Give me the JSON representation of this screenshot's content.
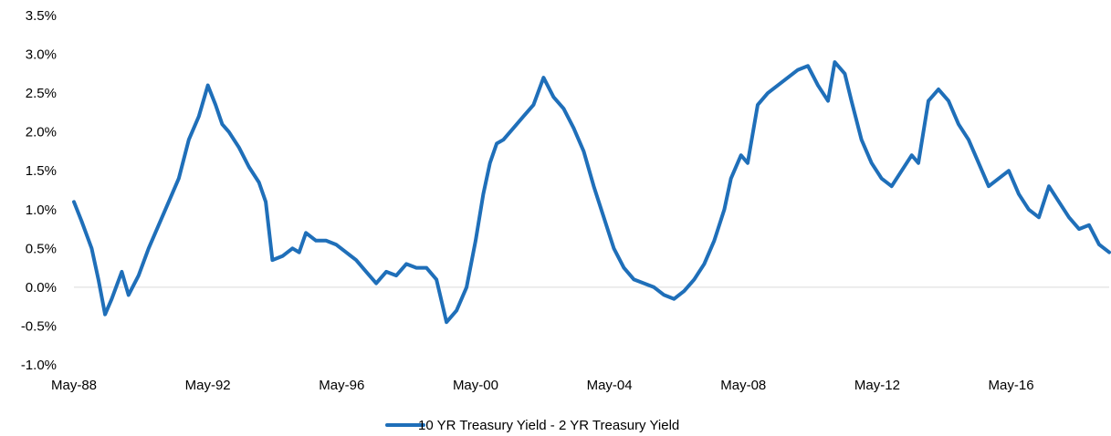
{
  "chart_data": {
    "type": "line",
    "title": "",
    "xlabel": "",
    "ylabel": "",
    "x_tick_labels": [
      "May-88",
      "May-92",
      "May-96",
      "May-00",
      "May-04",
      "May-08",
      "May-12",
      "May-16"
    ],
    "x_tick_years": [
      1988.37,
      1992.37,
      1996.37,
      2000.37,
      2004.37,
      2008.37,
      2012.37,
      2016.37
    ],
    "y_tick_labels": [
      "3.5%",
      "3.0%",
      "2.5%",
      "2.0%",
      "1.5%",
      "1.0%",
      "0.5%",
      "0.0%",
      "-0.5%",
      "-1.0%"
    ],
    "y_tick_values": [
      3.5,
      3.0,
      2.5,
      2.0,
      1.5,
      1.0,
      0.5,
      0.0,
      -0.5,
      -1.0
    ],
    "xlim": [
      1988.37,
      2019.3
    ],
    "ylim": [
      -1.0,
      3.5
    ],
    "grid": false,
    "legend": "bottom-center",
    "series": [
      {
        "name": "10 YR Treasury Yield - 2 YR Treasury Yield",
        "color": "#1f6fb9",
        "x": [
          1988.37,
          1988.6,
          1988.9,
          1989.1,
          1989.3,
          1989.5,
          1989.8,
          1990.0,
          1990.3,
          1990.6,
          1990.9,
          1991.2,
          1991.5,
          1991.8,
          1992.1,
          1992.37,
          1992.6,
          1992.8,
          1993.0,
          1993.3,
          1993.6,
          1993.9,
          1994.1,
          1994.3,
          1994.6,
          1994.9,
          1995.1,
          1995.3,
          1995.6,
          1995.9,
          1996.2,
          1996.5,
          1996.8,
          1997.1,
          1997.4,
          1997.7,
          1998.0,
          1998.3,
          1998.6,
          1998.9,
          1999.2,
          1999.5,
          1999.8,
          2000.1,
          2000.37,
          2000.6,
          2000.8,
          2001.0,
          2001.2,
          2001.5,
          2001.8,
          2002.1,
          2002.4,
          2002.7,
          2003.0,
          2003.3,
          2003.6,
          2003.9,
          2004.2,
          2004.5,
          2004.8,
          2005.1,
          2005.4,
          2005.7,
          2006.0,
          2006.3,
          2006.6,
          2006.9,
          2007.2,
          2007.5,
          2007.8,
          2008.0,
          2008.3,
          2008.5,
          2008.8,
          2009.1,
          2009.4,
          2009.7,
          2010.0,
          2010.3,
          2010.6,
          2010.9,
          2011.1,
          2011.4,
          2011.6,
          2011.9,
          2012.2,
          2012.5,
          2012.8,
          2013.1,
          2013.4,
          2013.6,
          2013.9,
          2014.2,
          2014.5,
          2014.8,
          2015.1,
          2015.4,
          2015.7,
          2016.0,
          2016.3,
          2016.6,
          2016.9,
          2017.2,
          2017.5,
          2017.8,
          2018.1,
          2018.4,
          2018.7,
          2019.0,
          2019.3
        ],
        "y": [
          1.1,
          0.85,
          0.5,
          0.1,
          -0.35,
          -0.15,
          0.2,
          -0.1,
          0.15,
          0.5,
          0.8,
          1.1,
          1.4,
          1.9,
          2.2,
          2.6,
          2.35,
          2.1,
          2.0,
          1.8,
          1.55,
          1.35,
          1.1,
          0.35,
          0.4,
          0.5,
          0.45,
          0.7,
          0.6,
          0.6,
          0.55,
          0.45,
          0.35,
          0.2,
          0.05,
          0.2,
          0.15,
          0.3,
          0.25,
          0.25,
          0.1,
          -0.45,
          -0.3,
          0.0,
          0.6,
          1.2,
          1.6,
          1.85,
          1.9,
          2.05,
          2.2,
          2.35,
          2.7,
          2.45,
          2.3,
          2.05,
          1.75,
          1.3,
          0.9,
          0.5,
          0.25,
          0.1,
          0.05,
          0.0,
          -0.1,
          -0.15,
          -0.05,
          0.1,
          0.3,
          0.6,
          1.0,
          1.4,
          1.7,
          1.6,
          2.35,
          2.5,
          2.6,
          2.7,
          2.8,
          2.85,
          2.6,
          2.4,
          2.9,
          2.75,
          2.4,
          1.9,
          1.6,
          1.4,
          1.3,
          1.5,
          1.7,
          1.6,
          2.4,
          2.55,
          2.4,
          2.1,
          1.9,
          1.6,
          1.3,
          1.4,
          1.5,
          1.2,
          1.0,
          0.9,
          1.3,
          1.1,
          0.9,
          0.75,
          0.8,
          0.55,
          0.45
        ]
      }
    ]
  }
}
